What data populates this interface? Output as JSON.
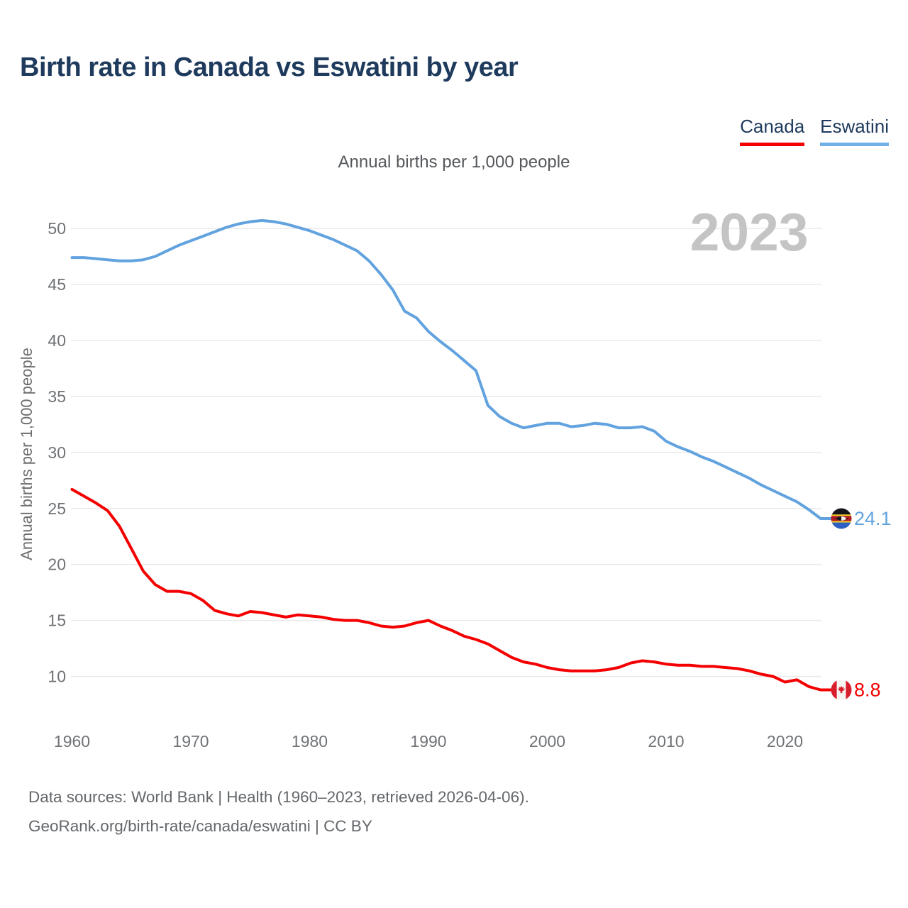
{
  "header": {
    "title": "Birth rate in Canada vs Eswatini by year",
    "legend": [
      {
        "label": "Canada",
        "color": "#f40000"
      },
      {
        "label": "Eswatini",
        "color": "#72b0e8"
      }
    ]
  },
  "subtitle": "Annual births per 1,000 people",
  "watermark": "2023",
  "footer": {
    "line1": "Data sources: World Bank | Health (1960–2023, retrieved 2026-04-06).",
    "line2": "GeoRank.org/birth-rate/canada/eswatini | CC BY"
  },
  "chart_data": {
    "type": "line",
    "title": "Birth rate in Canada vs Eswatini by year",
    "ylabel": "Annual births per 1,000 people",
    "xlabel": "",
    "grid": true,
    "legend_position": "top-right",
    "ylim": [
      8,
      52
    ],
    "yticks": [
      10,
      15,
      20,
      25,
      30,
      35,
      40,
      45,
      50
    ],
    "xticks": [
      1960,
      1970,
      1980,
      1990,
      2000,
      2010,
      2020
    ],
    "x": [
      1960,
      1961,
      1962,
      1963,
      1964,
      1965,
      1966,
      1967,
      1968,
      1969,
      1970,
      1971,
      1972,
      1973,
      1974,
      1975,
      1976,
      1977,
      1978,
      1979,
      1980,
      1981,
      1982,
      1983,
      1984,
      1985,
      1986,
      1987,
      1988,
      1989,
      1990,
      1991,
      1992,
      1993,
      1994,
      1995,
      1996,
      1997,
      1998,
      1999,
      2000,
      2001,
      2002,
      2003,
      2004,
      2005,
      2006,
      2007,
      2008,
      2009,
      2010,
      2011,
      2012,
      2013,
      2014,
      2015,
      2016,
      2017,
      2018,
      2019,
      2020,
      2021,
      2022,
      2023
    ],
    "series": [
      {
        "name": "Canada",
        "color": "#f40000",
        "flag": "canada",
        "end_label": "8.8",
        "values": [
          26.7,
          26.1,
          25.5,
          24.8,
          23.4,
          21.4,
          19.4,
          18.2,
          17.6,
          17.6,
          17.4,
          16.8,
          15.9,
          15.6,
          15.4,
          15.8,
          15.7,
          15.5,
          15.3,
          15.5,
          15.4,
          15.3,
          15.1,
          15.0,
          15.0,
          14.8,
          14.5,
          14.4,
          14.5,
          14.8,
          15.0,
          14.5,
          14.1,
          13.6,
          13.3,
          12.9,
          12.3,
          11.7,
          11.3,
          11.1,
          10.8,
          10.6,
          10.5,
          10.5,
          10.5,
          10.6,
          10.8,
          11.2,
          11.4,
          11.3,
          11.1,
          11.0,
          11.0,
          10.9,
          10.9,
          10.8,
          10.7,
          10.5,
          10.2,
          10.0,
          9.5,
          9.7,
          9.1,
          8.8
        ]
      },
      {
        "name": "Eswatini",
        "color": "#62a3df",
        "flag": "eswatini",
        "end_label": "24.1",
        "values": [
          47.4,
          47.4,
          47.3,
          47.2,
          47.1,
          47.1,
          47.2,
          47.5,
          48.0,
          48.5,
          48.9,
          49.3,
          49.7,
          50.1,
          50.4,
          50.6,
          50.7,
          50.6,
          50.4,
          50.1,
          49.8,
          49.4,
          49.0,
          48.5,
          48.0,
          47.1,
          45.9,
          44.5,
          42.6,
          42.0,
          40.8,
          39.9,
          39.1,
          38.2,
          37.3,
          34.2,
          33.2,
          32.6,
          32.2,
          32.4,
          32.6,
          32.6,
          32.3,
          32.4,
          32.6,
          32.5,
          32.2,
          32.2,
          32.3,
          31.9,
          31.0,
          30.5,
          30.1,
          29.6,
          29.2,
          28.7,
          28.2,
          27.7,
          27.1,
          26.6,
          26.1,
          25.6,
          24.9,
          24.1
        ]
      }
    ]
  }
}
